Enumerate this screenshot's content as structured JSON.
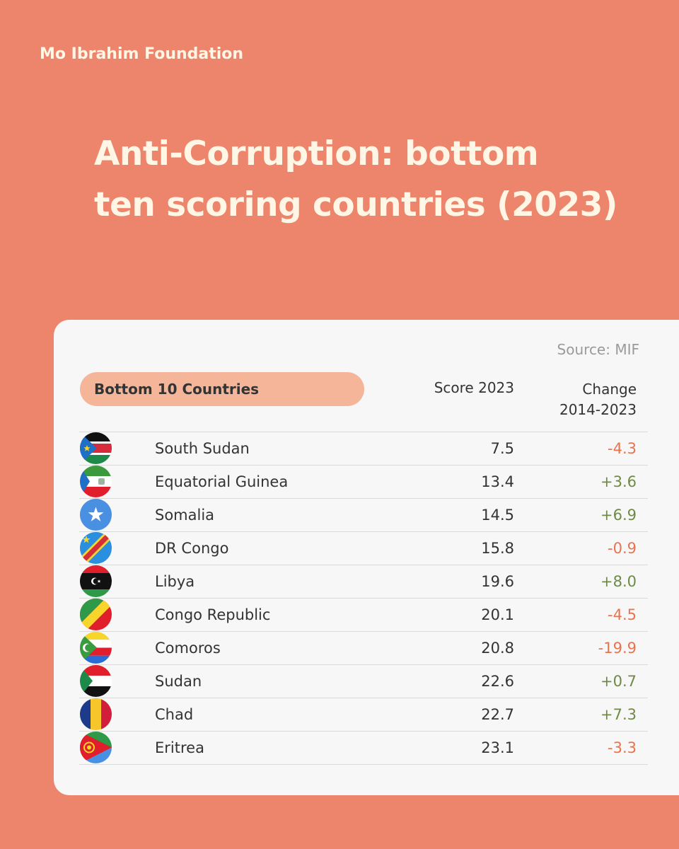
{
  "brand": "Mo Ibrahim Foundation",
  "title_lines": [
    "Anti-Corruption: bottom",
    "ten scoring countries (2023)"
  ],
  "source": "Source: MIF",
  "headers": {
    "country": "Bottom 10 Countries",
    "score": "Score 2023",
    "change_line1": "Change",
    "change_line2": "2014-2023"
  },
  "colors": {
    "background": "#ED846C",
    "card": "#F7F7F7",
    "pill": "#F4B598",
    "negative": "#E8734F",
    "positive": "#6E8A45"
  },
  "chart_data": {
    "type": "table",
    "columns": [
      "Bottom 10 Countries",
      "Score 2023",
      "Change 2014-2023"
    ],
    "rows": [
      {
        "flag": "south-sudan-flag-icon",
        "country": "South Sudan",
        "score": "7.5",
        "change": "-4.3"
      },
      {
        "flag": "equatorial-guinea-flag-icon",
        "country": "Equatorial Guinea",
        "score": "13.4",
        "change": "+3.6"
      },
      {
        "flag": "somalia-flag-icon",
        "country": "Somalia",
        "score": "14.5",
        "change": "+6.9"
      },
      {
        "flag": "dr-congo-flag-icon",
        "country": "DR Congo",
        "score": "15.8",
        "change": "-0.9"
      },
      {
        "flag": "libya-flag-icon",
        "country": "Libya",
        "score": "19.6",
        "change": "+8.0"
      },
      {
        "flag": "congo-republic-flag-icon",
        "country": "Congo Republic",
        "score": "20.1",
        "change": "-4.5"
      },
      {
        "flag": "comoros-flag-icon",
        "country": "Comoros",
        "score": "20.8",
        "change": "-19.9"
      },
      {
        "flag": "sudan-flag-icon",
        "country": "Sudan",
        "score": "22.6",
        "change": "+0.7"
      },
      {
        "flag": "chad-flag-icon",
        "country": "Chad",
        "score": "22.7",
        "change": "+7.3"
      },
      {
        "flag": "eritrea-flag-icon",
        "country": "Eritrea",
        "score": "23.1",
        "change": "-3.3"
      }
    ]
  }
}
